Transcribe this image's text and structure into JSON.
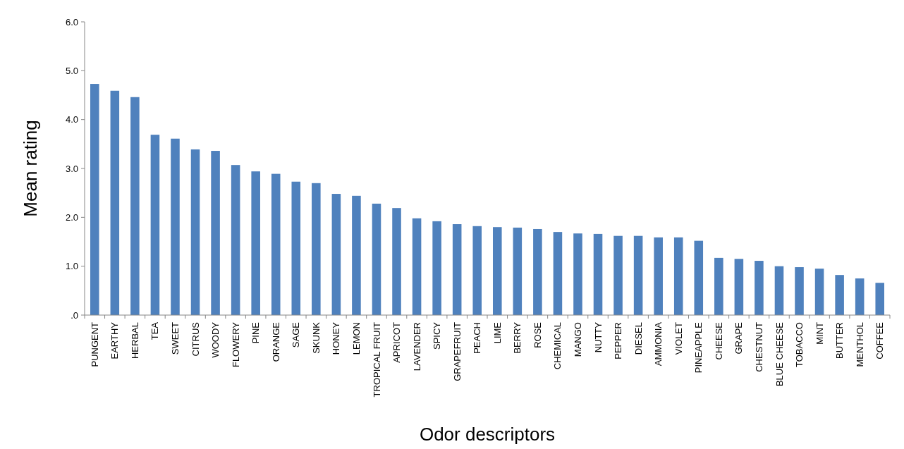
{
  "chart_data": {
    "type": "bar",
    "xlabel": "Odor descriptors",
    "ylabel": "Mean rating",
    "color": "#4f81bd",
    "categories": [
      "PUNGENT",
      "EARTHY",
      "HERBAL",
      "TEA",
      "SWEET",
      "CITRUS",
      "WOODY",
      "FLOWERY",
      "PINE",
      "ORANGE",
      "SAGE",
      "SKUNK",
      "HONEY",
      "LEMON",
      "TROPICAL FRUIT",
      "APRICOT",
      "LAVENDER",
      "SPICY",
      "GRAPEFRUIT",
      "PEACH",
      "LIME",
      "BERRY",
      "ROSE",
      "CHEMICAL",
      "MANGO",
      "NUTTY",
      "PEPPER",
      "DIESEL",
      "AMMONIA",
      "VIOLET",
      "PINEAPPLE",
      "CHEESE",
      "GRAPE",
      "CHESTNUT",
      "BLUE CHEESE",
      "TOBACCO",
      "MINT",
      "BUTTER",
      "MENTHOL",
      "COFFEE"
    ],
    "values": [
      4.73,
      4.59,
      4.46,
      3.69,
      3.61,
      3.39,
      3.36,
      3.07,
      2.94,
      2.89,
      2.73,
      2.7,
      2.48,
      2.44,
      2.28,
      2.19,
      1.98,
      1.92,
      1.86,
      1.82,
      1.8,
      1.79,
      1.76,
      1.7,
      1.67,
      1.66,
      1.62,
      1.62,
      1.59,
      1.59,
      1.52,
      1.17,
      1.15,
      1.11,
      1.0,
      0.98,
      0.95,
      0.82,
      0.75,
      0.66
    ],
    "ylim": [
      0,
      6
    ],
    "yticks": [
      {
        "value": 0,
        "label": ".0"
      },
      {
        "value": 1,
        "label": "1.0"
      },
      {
        "value": 2,
        "label": "2.0"
      },
      {
        "value": 3,
        "label": "3.0"
      },
      {
        "value": 4,
        "label": "4.0"
      },
      {
        "value": 5,
        "label": "5.0"
      },
      {
        "value": 6,
        "label": "6.0"
      }
    ],
    "grid": false
  }
}
